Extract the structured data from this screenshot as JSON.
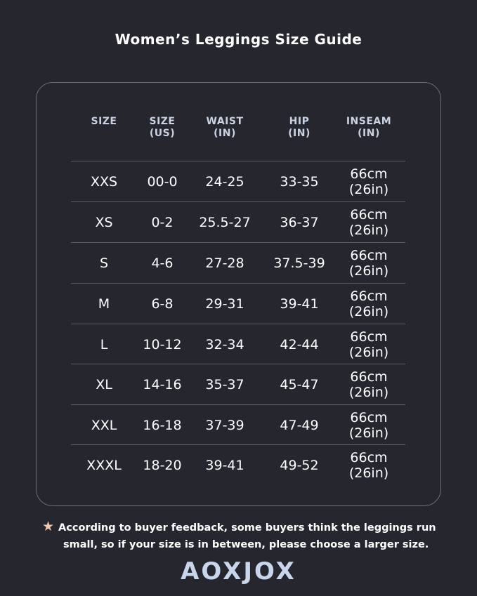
{
  "title": "Women’s Leggings Size Guide",
  "headers": [
    {
      "line1": "SIZE",
      "line2": ""
    },
    {
      "line1": "SIZE",
      "line2": "(US)"
    },
    {
      "line1": "WAIST",
      "line2": "(IN)"
    },
    {
      "line1": "HIP",
      "line2": "(IN)"
    },
    {
      "line1": "INSEAM",
      "line2": "(IN)"
    }
  ],
  "rows": [
    [
      "XXS",
      "00-0",
      "24-25",
      "33-35",
      "66cm (26in)"
    ],
    [
      "XS",
      "0-2",
      "25.5-27",
      "36-37",
      "66cm (26in)"
    ],
    [
      "S",
      "4-6",
      "27-28",
      "37.5-39",
      "66cm (26in)"
    ],
    [
      "M",
      "6-8",
      "29-31",
      "39-41",
      "66cm (26in)"
    ],
    [
      "L",
      "10-12",
      "32-34",
      "42-44",
      "66cm (26in)"
    ],
    [
      "XL",
      "14-16",
      "35-37",
      "45-47",
      "66cm (26in)"
    ],
    [
      "XXL",
      "16-18",
      "37-39",
      "47-49",
      "66cm (26in)"
    ],
    [
      "XXXL",
      "18-20",
      "39-41",
      "49-52",
      "66cm (26in)"
    ]
  ],
  "note": {
    "icon": "star-icon",
    "line1": "According to buyer feedback, some buyers think the leggings run",
    "line2": "small, so if your size is in between, please choose a larger size."
  },
  "brand": "AOXJOX",
  "colors": {
    "background": "#25262e",
    "header_text": "#c9d2e3",
    "star": "#f1c8a8",
    "logo": "#c9d5ea"
  }
}
